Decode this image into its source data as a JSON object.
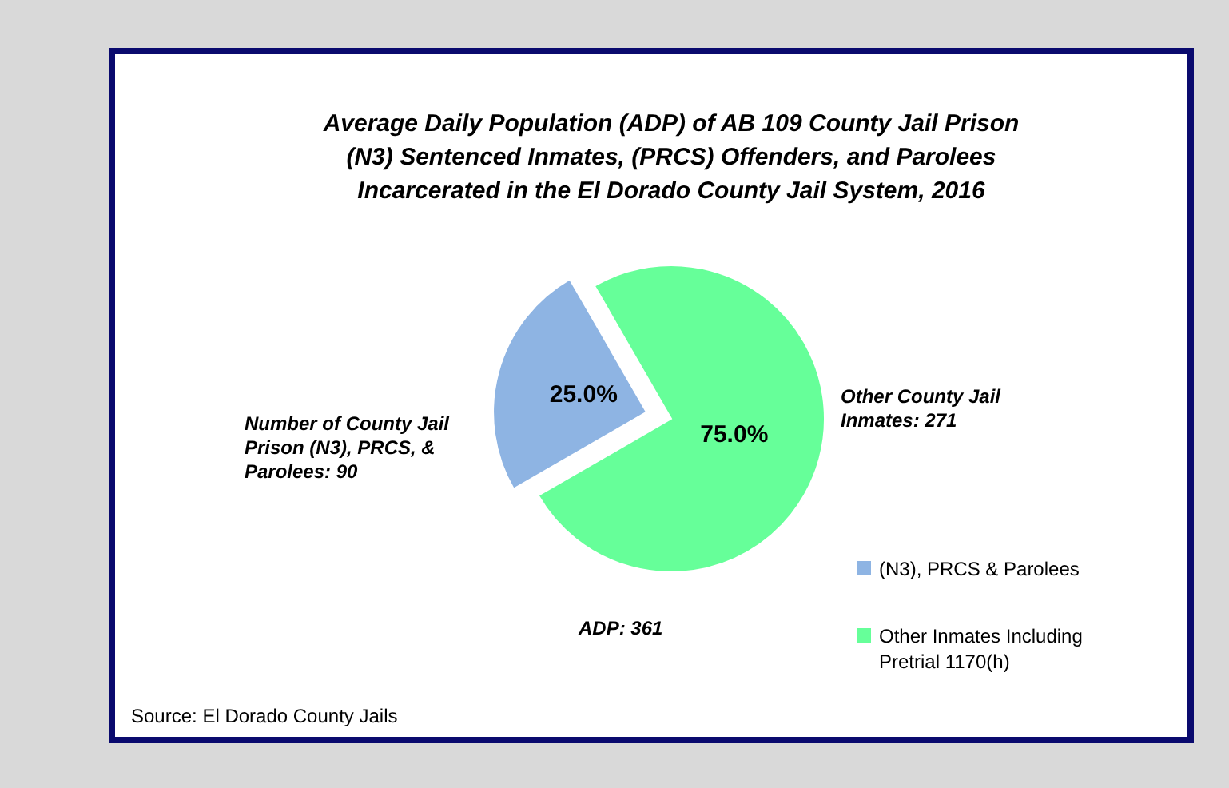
{
  "chart_data": {
    "type": "pie",
    "title": "Average Daily Population (ADP) of AB 109 County Jail Prison (N3) Sentenced Inmates,  (PRCS) Offenders, and Parolees Incarcerated in the El Dorado County Jail System,  2016",
    "categories": [
      "(N3), PRCS & Parolees",
      "Other Inmates Including Pretrial 1170(h)"
    ],
    "values": [
      25,
      75
    ],
    "colors": [
      "#8eb4e3",
      "#66ff99"
    ],
    "value_labels": [
      "25.0%",
      "75.0%"
    ],
    "legend": "bottom right",
    "annotations": [
      "Number of County Jail Prison (N3), PRCS, & Parolees:  90",
      "Other County Jail Inmates:  271",
      "ADP:  361",
      "Source:  El Dorado County Jails"
    ]
  }
}
